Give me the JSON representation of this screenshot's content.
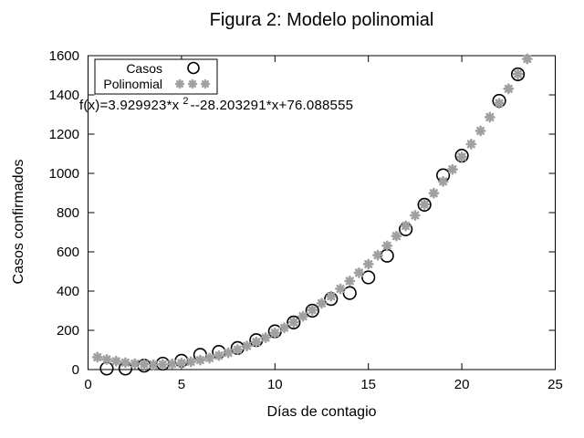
{
  "title": "Figura 2: Modelo polinomial",
  "annotation": {
    "prefix": "f(x)=3.929923*x",
    "sup": "2",
    "suffix": "--28.203291*x+76.088555"
  },
  "legend": {
    "position": "top-left",
    "items": [
      {
        "label": "Casos",
        "marker": "open-circle"
      },
      {
        "label": "Polinomial",
        "marker": "star-dots"
      }
    ]
  },
  "axes": {
    "x": {
      "label": "Días de contagio",
      "min": 0,
      "max": 25,
      "ticks": [
        0,
        5,
        10,
        15,
        20,
        25
      ]
    },
    "y": {
      "label": "Casos confirmados",
      "min": 0,
      "max": 1600,
      "ticks": [
        0,
        200,
        400,
        600,
        800,
        1000,
        1200,
        1400,
        1600
      ]
    }
  },
  "colors": {
    "casos": "#000000",
    "polinomial": "#a0a0a0",
    "axis": "#000000",
    "background": "#ffffff"
  },
  "chart_data": {
    "type": "scatter",
    "title": "Figura 2: Modelo polinomial",
    "xlabel": "Días de contagio",
    "ylabel": "Casos confirmados",
    "xlim": [
      0,
      25
    ],
    "ylim": [
      0,
      1600
    ],
    "grid": false,
    "legend_position": "top-left",
    "series": [
      {
        "name": "Casos",
        "type": "scatter",
        "marker": "open-circle",
        "color": "#000000",
        "points": [
          [
            1,
            5
          ],
          [
            2,
            5
          ],
          [
            3,
            20
          ],
          [
            4,
            30
          ],
          [
            5,
            45
          ],
          [
            6,
            75
          ],
          [
            7,
            90
          ],
          [
            8,
            110
          ],
          [
            9,
            150
          ],
          [
            10,
            195
          ],
          [
            11,
            240
          ],
          [
            12,
            300
          ],
          [
            13,
            360
          ],
          [
            14,
            390
          ],
          [
            15,
            470
          ],
          [
            16,
            580
          ],
          [
            17,
            715
          ],
          [
            18,
            840
          ],
          [
            19,
            990
          ],
          [
            20,
            1090
          ],
          [
            22,
            1370
          ],
          [
            23,
            1505
          ]
        ]
      },
      {
        "name": "Polinomial",
        "type": "function-dots",
        "marker": "star",
        "color": "#a0a0a0",
        "equation": "f(x)=3.929923*x^2-28.203291*x+76.088555",
        "coefficients": {
          "a": 3.929923,
          "b": -28.203291,
          "c": 76.088555
        },
        "x_start": 0.5,
        "x_end": 23.5,
        "x_step": 0.5
      }
    ]
  }
}
